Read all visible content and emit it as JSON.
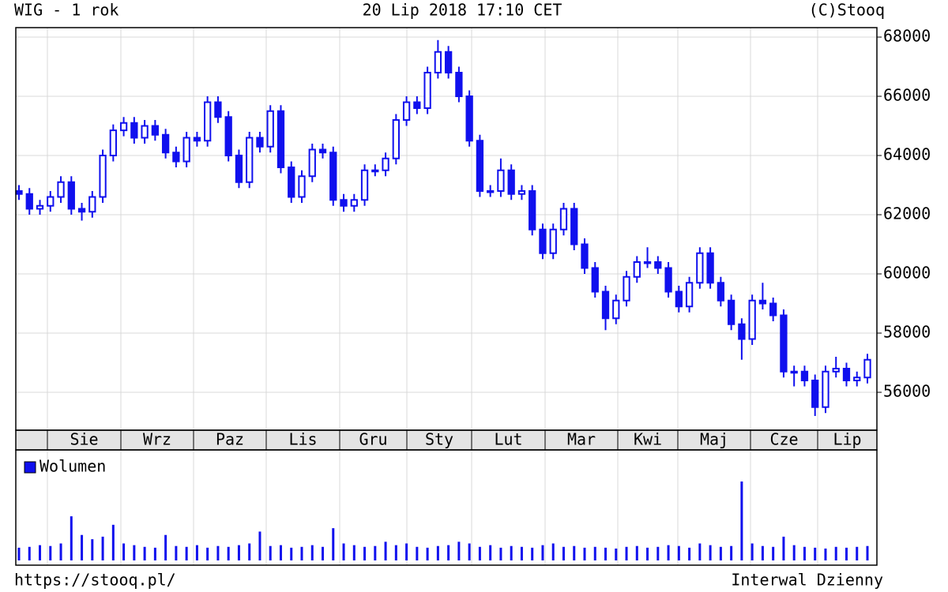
{
  "chart_data": {
    "type": "candlestick",
    "title": "WIG - 1 rok",
    "subtitle": "20 Lip 2018 17:10 CET",
    "source": "(C)Stooq",
    "footer_left": "https://stooq.pl/",
    "footer_right": "Interwal Dzienny",
    "color": "#1010ee",
    "grid": true,
    "categories": [
      "Sie",
      "Wrz",
      "Paz",
      "Lis",
      "Gru",
      "Sty",
      "Lut",
      "Mar",
      "Kwi",
      "Maj",
      "Cze",
      "Lip"
    ],
    "open": [
      62800,
      62700,
      62200,
      62300,
      62600,
      63100,
      62200,
      62100,
      62600,
      64000,
      64850,
      65100,
      64600,
      65000,
      64700,
      64100,
      63800,
      64600,
      64500,
      65800,
      65300,
      64000,
      63100,
      64600,
      64300,
      65500,
      63600,
      62600,
      63300,
      64200,
      64100,
      62500,
      62300,
      62500,
      63500,
      63500,
      63900,
      65200,
      65800,
      65600,
      66800,
      67500,
      66800,
      66000,
      64500,
      62800,
      62800,
      63500,
      62700,
      62800,
      61500,
      60700,
      61500,
      62200,
      61000,
      60200,
      59400,
      58500,
      59100,
      59900,
      60400,
      60400,
      60200,
      59400,
      58900,
      59700,
      60700,
      59700,
      59100,
      58300,
      57800,
      59100,
      59000,
      58600,
      56700,
      56700,
      56400,
      55500,
      56700,
      56800,
      56400,
      56500
    ],
    "high": [
      63000,
      62900,
      62500,
      62800,
      63300,
      63300,
      62400,
      62800,
      64200,
      65050,
      65300,
      65300,
      65200,
      65200,
      64900,
      64300,
      64800,
      64800,
      66000,
      66000,
      65500,
      64200,
      64800,
      64800,
      65700,
      65700,
      63800,
      63500,
      64400,
      64400,
      64300,
      62700,
      62700,
      63700,
      63700,
      64100,
      65400,
      66000,
      66000,
      67000,
      67900,
      67700,
      67000,
      66200,
      64700,
      63000,
      63900,
      63700,
      63000,
      63000,
      61700,
      61700,
      62400,
      62400,
      61200,
      60400,
      59600,
      59300,
      60100,
      60600,
      60900,
      60600,
      60400,
      59600,
      59900,
      60900,
      60900,
      59900,
      59300,
      58500,
      59300,
      59700,
      59200,
      58800,
      56900,
      56900,
      56600,
      56900,
      57200,
      57000,
      56700,
      57300
    ],
    "low": [
      62500,
      62000,
      62000,
      62100,
      62400,
      62000,
      61800,
      61900,
      62400,
      63800,
      64650,
      64400,
      64400,
      64500,
      63900,
      63600,
      63600,
      64300,
      64300,
      65100,
      63800,
      62900,
      62900,
      64100,
      64100,
      63400,
      62400,
      62400,
      63100,
      63900,
      62300,
      62100,
      62100,
      62300,
      63300,
      63300,
      63700,
      65000,
      65400,
      65400,
      66600,
      66600,
      65800,
      64300,
      62600,
      62600,
      62600,
      62500,
      62500,
      61300,
      60500,
      60500,
      61300,
      60800,
      60000,
      59200,
      58100,
      58300,
      58900,
      59700,
      60200,
      60000,
      59200,
      58700,
      58700,
      59500,
      59500,
      58900,
      58100,
      57100,
      57600,
      58800,
      58400,
      56500,
      56200,
      56200,
      55200,
      55300,
      56500,
      56200,
      56200,
      56300
    ],
    "close": [
      62700,
      62200,
      62300,
      62600,
      63100,
      62200,
      62100,
      62600,
      64000,
      64850,
      65100,
      64600,
      65000,
      64700,
      64100,
      63800,
      64600,
      64500,
      65800,
      65300,
      64000,
      63100,
      64600,
      64300,
      65500,
      63600,
      62600,
      63300,
      64200,
      64100,
      62500,
      62300,
      62500,
      63500,
      63500,
      63900,
      65200,
      65800,
      65600,
      66800,
      67500,
      66800,
      66000,
      64500,
      62800,
      62800,
      63500,
      62700,
      62800,
      61500,
      60700,
      61500,
      62200,
      61000,
      60200,
      59400,
      58500,
      59100,
      59900,
      60400,
      60400,
      60200,
      59400,
      58900,
      59700,
      60700,
      59700,
      59100,
      58300,
      57800,
      59100,
      59000,
      58600,
      56700,
      56700,
      56400,
      55500,
      56700,
      56800,
      56400,
      56500,
      57100
    ],
    "ylim": [
      54720,
      68320
    ],
    "yticks": [
      56000,
      58000,
      60000,
      62000,
      64000,
      66000,
      68000
    ],
    "volume": {
      "name": "Wolumen",
      "color": "#1010ee",
      "values": [
        15,
        16,
        18,
        17,
        20,
        52,
        30,
        25,
        28,
        42,
        20,
        18,
        16,
        15,
        30,
        17,
        16,
        18,
        15,
        17,
        16,
        18,
        20,
        34,
        17,
        18,
        15,
        16,
        18,
        16,
        38,
        20,
        18,
        16,
        17,
        22,
        18,
        20,
        16,
        15,
        17,
        18,
        22,
        20,
        16,
        18,
        15,
        17,
        16,
        15,
        18,
        20,
        16,
        17,
        15,
        16,
        15,
        14,
        16,
        17,
        15,
        16,
        18,
        17,
        15,
        20,
        18,
        16,
        17,
        93,
        20,
        17,
        16,
        28,
        18,
        16,
        15,
        14,
        16,
        15,
        16,
        17
      ]
    }
  }
}
